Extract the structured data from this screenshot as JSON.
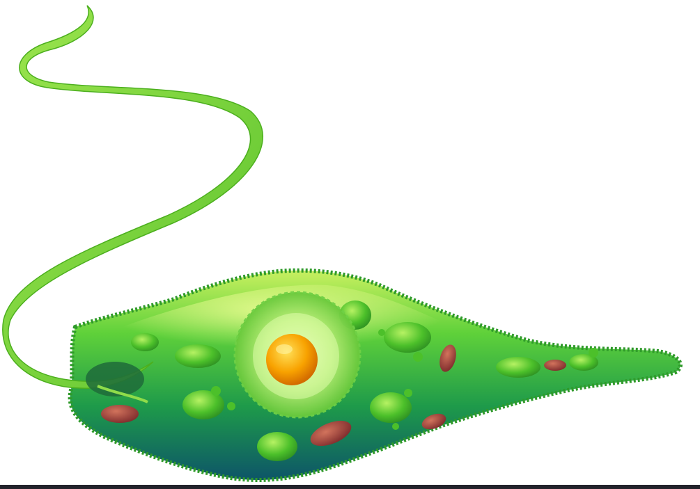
{
  "colors": {
    "background": "#ffffff",
    "flagellum": "#8fdc4a",
    "flagellum_edge": "#4caf1e",
    "cytoplasm_light": "#d8f56a",
    "cytoplasm_mid": "#3fbf2e",
    "cytoplasm_dark": "#0f5f6a",
    "membrane": "#2f9a2a",
    "chloroplast": "#4fc42a",
    "chloroplast_highlight": "#a8ee5a",
    "paramylon": "#a8443a",
    "nucleus_outer": "#c9f28a",
    "nucleolus": "#f5a000",
    "bottom_strip": "#23232b"
  },
  "icons": {
    "cell": "euglena-cell-icon",
    "flagellum": "flagellum-icon",
    "nucleus": "nucleus-icon",
    "eyespot": "eyespot-icon"
  }
}
